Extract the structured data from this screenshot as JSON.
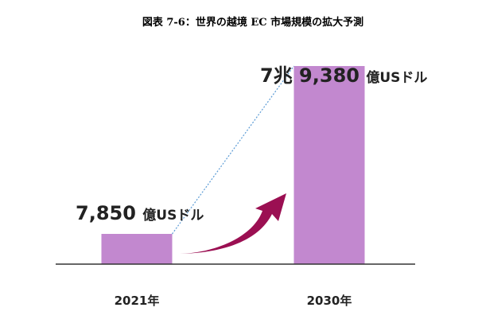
{
  "chart_data": {
    "type": "bar",
    "title": "図表 7-6：世界の越境 EC 市場規模の拡大予測",
    "categories": [
      "2021年",
      "2030年"
    ],
    "values": [
      7850,
      79380
    ],
    "unit": "億USドル",
    "data_labels": [
      {
        "number": "7,850",
        "unit": "億USドル"
      },
      {
        "number": "7兆 9,380",
        "unit": "億USドル"
      }
    ],
    "xlabel": "",
    "ylabel": "",
    "grid": false,
    "legend": "none",
    "bar_color": "#c288cf",
    "arrow_color": "#9b0f52",
    "connector_color": "#5b9bd5"
  }
}
